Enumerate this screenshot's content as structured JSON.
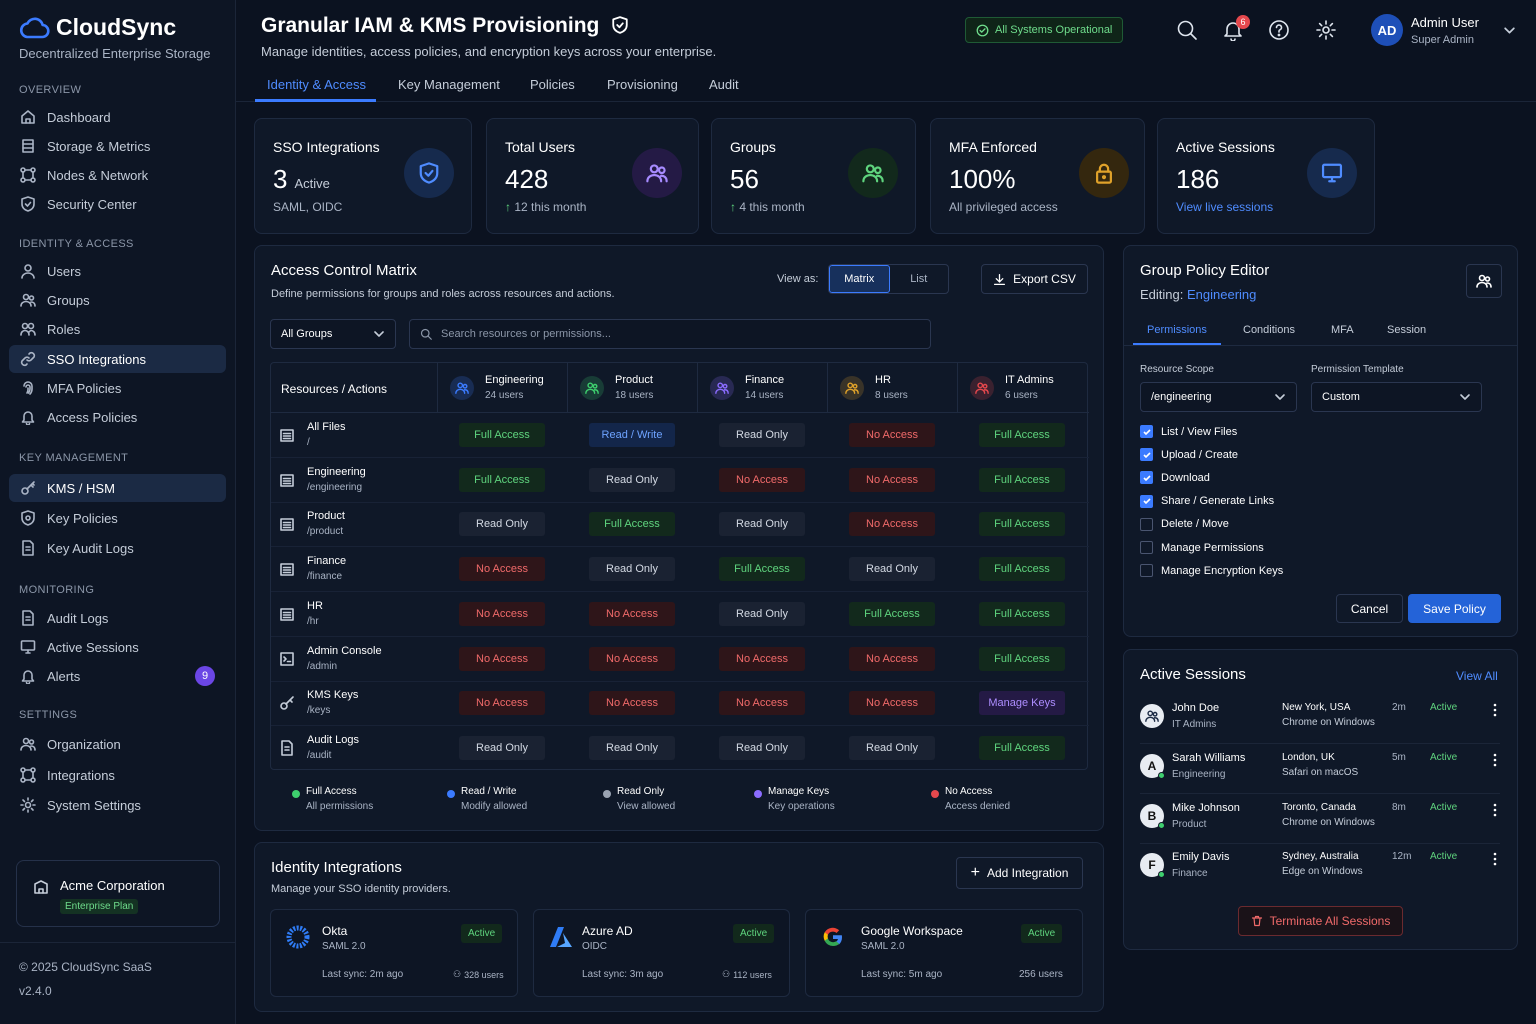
{
  "app": {
    "name": "CloudSync",
    "tagline": "Decentralized Enterprise Storage",
    "brand_color": "#3b7bff"
  },
  "sidebar": {
    "sections": [
      {
        "title": "OVERVIEW",
        "items": [
          {
            "label": "Dashboard",
            "icon": "home-icon"
          },
          {
            "label": "Storage & Metrics",
            "icon": "storage-icon"
          },
          {
            "label": "Nodes & Network",
            "icon": "network-icon"
          },
          {
            "label": "Security Center",
            "icon": "shield-icon"
          }
        ]
      },
      {
        "title": "IDENTITY & ACCESS",
        "items": [
          {
            "label": "Users",
            "icon": "user-icon"
          },
          {
            "label": "Groups",
            "icon": "users-icon"
          },
          {
            "label": "Roles",
            "icon": "roles-icon"
          },
          {
            "label": "SSO Integrations",
            "icon": "link-icon",
            "active": true
          },
          {
            "label": "MFA Policies",
            "icon": "fingerprint-icon"
          },
          {
            "label": "Access Policies",
            "icon": "bell-icon"
          }
        ]
      },
      {
        "title": "KEY MANAGEMENT",
        "items": [
          {
            "label": "KMS / HSM",
            "icon": "key-icon",
            "active": true
          },
          {
            "label": "Key Policies",
            "icon": "shield-icon"
          },
          {
            "label": "Key Audit Logs",
            "icon": "file-icon"
          }
        ]
      },
      {
        "title": "MONITORING",
        "items": [
          {
            "label": "Audit Logs",
            "icon": "file-icon"
          },
          {
            "label": "Active Sessions",
            "icon": "monitor-icon"
          },
          {
            "label": "Alerts",
            "icon": "bell-icon",
            "badge": "9"
          }
        ]
      },
      {
        "title": "SETTINGS",
        "items": [
          {
            "label": "Organization",
            "icon": "users-icon"
          },
          {
            "label": "Integrations",
            "icon": "network-icon"
          },
          {
            "label": "System Settings",
            "icon": "gear-icon"
          }
        ]
      }
    ],
    "org": {
      "name": "Acme Corporation",
      "plan": "Enterprise Plan"
    },
    "copyright": "© 2025 CloudSync SaaS",
    "version": "v2.4.0"
  },
  "header": {
    "title": "Granular IAM & KMS Provisioning",
    "subtitle": "Manage identities, access policies, and encryption keys across your enterprise.",
    "status": "All Systems Operational",
    "notifications": "6",
    "user": {
      "initials": "AD",
      "name": "Admin User",
      "role": "Super Admin"
    },
    "tabs": [
      "Identity & Access",
      "Key Management",
      "Policies",
      "Provisioning",
      "Audit"
    ],
    "active_tab": "Identity & Access"
  },
  "stats": [
    {
      "title": "SSO Integrations",
      "value": "3",
      "value_suffix": "Active",
      "sub": "SAML, OIDC",
      "icon": "shield-check-icon",
      "color": "#3b7bff"
    },
    {
      "title": "Total Users",
      "value": "428",
      "sub": "12 this month",
      "trend": "up",
      "icon": "users-icon",
      "color": "#8b6cff"
    },
    {
      "title": "Groups",
      "value": "56",
      "sub": "4 this month",
      "trend": "up",
      "icon": "users-icon",
      "color": "#3ecf6e"
    },
    {
      "title": "MFA Enforced",
      "value": "100%",
      "sub": "All privileged access",
      "icon": "lock-icon",
      "color": "#e0a22a"
    },
    {
      "title": "Active Sessions",
      "value": "186",
      "sub": "View live sessions",
      "icon": "monitor-icon",
      "color": "#3b7bff"
    }
  ],
  "matrix": {
    "title": "Access Control Matrix",
    "subtitle": "Define permissions for groups and roles across resources and actions.",
    "view_as_label": "View as:",
    "view_options": [
      "Matrix",
      "List"
    ],
    "view_selected": "Matrix",
    "export_label": "Export CSV",
    "group_filter": "All Groups",
    "search_placeholder": "Search resources or permissions...",
    "row_header": "Resources / Actions",
    "groups": [
      {
        "name": "Engineering",
        "users": "24 users",
        "color": "#3b7bff"
      },
      {
        "name": "Product",
        "users": "18 users",
        "color": "#3ecf6e"
      },
      {
        "name": "Finance",
        "users": "14 users",
        "color": "#8b6cff"
      },
      {
        "name": "HR",
        "users": "8 users",
        "color": "#e0a22a"
      },
      {
        "name": "IT Admins",
        "users": "6 users",
        "color": "#e5484d"
      }
    ],
    "rows": [
      {
        "name": "All Files",
        "path": "/",
        "icon": "folder-icon",
        "cells": [
          "Full Access",
          "Read / Write",
          "Read Only",
          "No Access",
          "Full Access"
        ]
      },
      {
        "name": "Engineering",
        "path": "/engineering",
        "icon": "folder-icon",
        "cells": [
          "Full Access",
          "Read Only",
          "No Access",
          "No Access",
          "Full Access"
        ]
      },
      {
        "name": "Product",
        "path": "/product",
        "icon": "folder-icon",
        "cells": [
          "Read Only",
          "Full Access",
          "Read Only",
          "No Access",
          "Full Access"
        ]
      },
      {
        "name": "Finance",
        "path": "/finance",
        "icon": "folder-icon",
        "cells": [
          "No Access",
          "Read Only",
          "Full Access",
          "Read Only",
          "Full Access"
        ]
      },
      {
        "name": "HR",
        "path": "/hr",
        "icon": "folder-icon",
        "cells": [
          "No Access",
          "No Access",
          "Read Only",
          "Full Access",
          "Full Access"
        ]
      },
      {
        "name": "Admin Console",
        "path": "/admin",
        "icon": "console-icon",
        "cells": [
          "No Access",
          "No Access",
          "No Access",
          "No Access",
          "Full Access"
        ]
      },
      {
        "name": "KMS Keys",
        "path": "/keys",
        "icon": "key-icon",
        "cells": [
          "No Access",
          "No Access",
          "No Access",
          "No Access",
          "Manage Keys"
        ]
      },
      {
        "name": "Audit Logs",
        "path": "/audit",
        "icon": "file-icon",
        "cells": [
          "Read Only",
          "Read Only",
          "Read Only",
          "Read Only",
          "Full Access"
        ]
      }
    ],
    "legend": [
      {
        "label": "Full Access",
        "desc": "All permissions",
        "color": "#3ecf6e"
      },
      {
        "label": "Read / Write",
        "desc": "Modify allowed",
        "color": "#3b7bff"
      },
      {
        "label": "Read Only",
        "desc": "View allowed",
        "color": "#9aa3b2"
      },
      {
        "label": "Manage Keys",
        "desc": "Key operations",
        "color": "#8b6cff"
      },
      {
        "label": "No Access",
        "desc": "Access denied",
        "color": "#e5484d"
      }
    ]
  },
  "integrations": {
    "title": "Identity Integrations",
    "subtitle": "Manage your SSO identity providers.",
    "add_label": "Add Integration",
    "providers": [
      {
        "name": "Okta",
        "protocol": "SAML 2.0",
        "status": "Active",
        "sync": "Last sync: 2m ago",
        "users": "328 users",
        "logo": "okta-logo"
      },
      {
        "name": "Azure AD",
        "protocol": "OIDC",
        "status": "Active",
        "sync": "Last sync: 3m ago",
        "users": "112 users",
        "logo": "azure-logo"
      },
      {
        "name": "Google Workspace",
        "protocol": "SAML 2.0",
        "status": "Active",
        "sync": "Last sync: 5m ago",
        "users": "256 users",
        "logo": "google-logo"
      }
    ]
  },
  "policy_editor": {
    "title": "Group Policy Editor",
    "editing_label": "Editing:",
    "editing_group": "Engineering",
    "tabs": [
      "Permissions",
      "Conditions",
      "MFA",
      "Session"
    ],
    "active_tab": "Permissions",
    "scope_label": "Resource Scope",
    "scope_value": "/engineering",
    "template_label": "Permission Template",
    "template_value": "Custom",
    "permissions": [
      {
        "label": "List / View Files",
        "checked": true
      },
      {
        "label": "Upload / Create",
        "checked": true
      },
      {
        "label": "Download",
        "checked": true
      },
      {
        "label": "Share / Generate Links",
        "checked": true
      },
      {
        "label": "Delete / Move",
        "checked": false
      },
      {
        "label": "Manage Permissions",
        "checked": false
      },
      {
        "label": "Manage Encryption Keys",
        "checked": false
      }
    ],
    "cancel_label": "Cancel",
    "save_label": "Save Policy"
  },
  "sessions": {
    "title": "Active Sessions",
    "view_all": "View All",
    "items": [
      {
        "name": "John Doe",
        "group": "IT Admins",
        "location": "New York, USA",
        "browser": "Chrome on Windows",
        "time": "2m",
        "status": "Active",
        "avatar": ""
      },
      {
        "name": "Sarah Williams",
        "group": "Engineering",
        "location": "London, UK",
        "browser": "Safari on macOS",
        "time": "5m",
        "status": "Active",
        "avatar": "A"
      },
      {
        "name": "Mike Johnson",
        "group": "Product",
        "location": "Toronto, Canada",
        "browser": "Chrome on Windows",
        "time": "8m",
        "status": "Active",
        "avatar": "B"
      },
      {
        "name": "Emily Davis",
        "group": "Finance",
        "location": "Sydney, Australia",
        "browser": "Edge on Windows",
        "time": "12m",
        "status": "Active",
        "avatar": "F"
      }
    ],
    "terminate_label": "Terminate All Sessions"
  }
}
